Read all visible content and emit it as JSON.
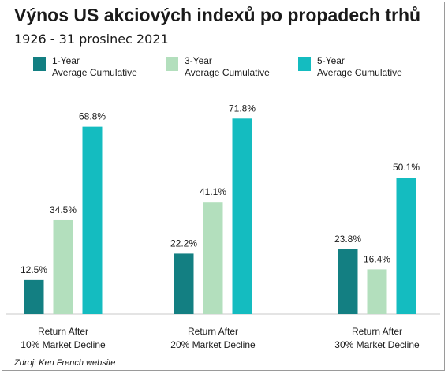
{
  "title": "Výnos US akciových indexů po propadech trhů",
  "subtitle": "1926 - 31 prosinec 2021",
  "source": "Zdroj: Ken French website",
  "colors": {
    "one_year": "#137f82",
    "three_year": "#b3dfbd",
    "five_year": "#14bcc0",
    "axis": "#c8c8c8",
    "text": "#1a1a1a"
  },
  "chart_data": {
    "type": "bar",
    "title": "Výnos US akciových indexů po propadech trhů",
    "subtitle": "1926 - 31 prosinec 2021",
    "categories": [
      "Return After\n10% Market Decline",
      "Return After\n20% Market Decline",
      "Return After\n30% Market Decline"
    ],
    "series": [
      {
        "name": "1-Year\nAverage Cumulative",
        "values": [
          12.5,
          22.2,
          23.8
        ],
        "labels": [
          "12.5%",
          "22.2%",
          "23.8%"
        ]
      },
      {
        "name": "3-Year\nAverage Cumulative",
        "values": [
          34.5,
          41.1,
          16.4
        ],
        "labels": [
          "34.5%",
          "41.1%",
          "16.4%"
        ]
      },
      {
        "name": "5-Year\nAverage Cumulative",
        "values": [
          68.8,
          71.8,
          50.1
        ],
        "labels": [
          "68.8%",
          "71.8%",
          "50.1%"
        ]
      }
    ],
    "xlabel": "",
    "ylabel": "",
    "ylim": [
      0,
      80
    ],
    "grid": false,
    "legend_position": "top"
  }
}
